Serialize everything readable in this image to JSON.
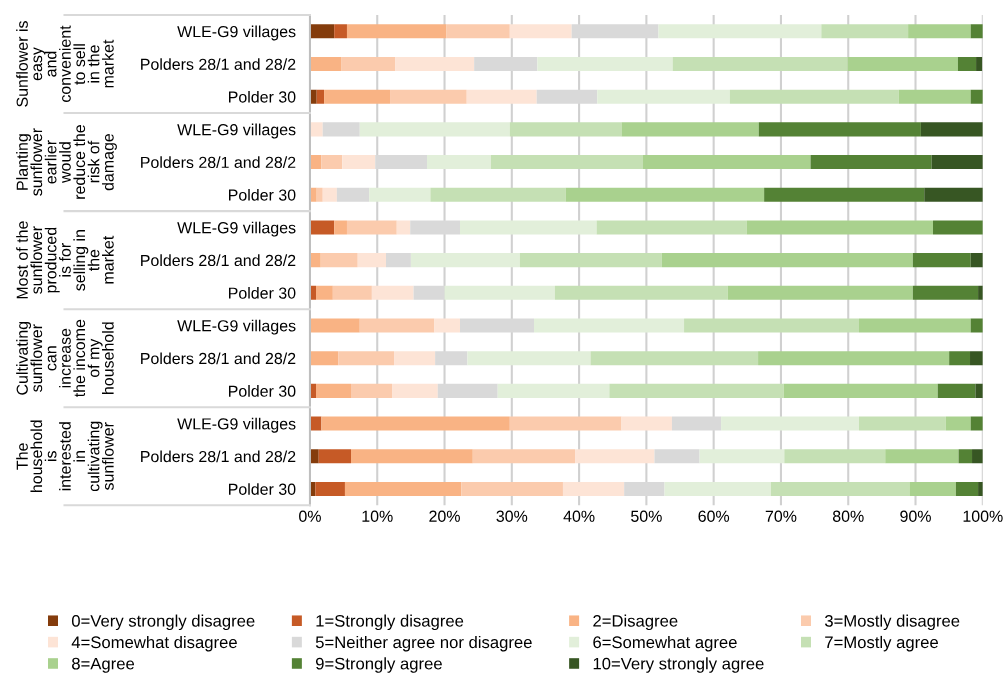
{
  "chart_data": {
    "type": "bar",
    "orientation": "horizontal",
    "stacked": true,
    "categories": [
      "WLE-G9 villages",
      "Polders 28/1 and 28/2",
      "Polder 30",
      "WLE-G9 villages",
      "Polders 28/1 and 28/2",
      "Polder 30",
      "WLE-G9 villages",
      "Polders 28/1 and 28/2",
      "Polder 30",
      "WLE-G9 villages",
      "Polders 28/1 and 28/2",
      "Polder 30",
      "WLE-G9 villages",
      "Polders 28/1 and 28/2",
      "Polder 30"
    ],
    "series": [
      {
        "name": "0=Very strongly disagree",
        "color": "#843c0c",
        "values": [
          3.6,
          0,
          1.0,
          0,
          0,
          0,
          0,
          0,
          0,
          0,
          0,
          0,
          0,
          1.3,
          0.8
        ]
      },
      {
        "name": "1=Strongly disagree",
        "color": "#c65a26",
        "values": [
          1.9,
          0,
          1.1,
          0,
          0,
          0,
          3.6,
          0,
          0.9,
          0,
          0,
          0.9,
          1.7,
          4.8,
          4.4
        ]
      },
      {
        "name": "2=Disagree",
        "color": "#f9b384",
        "values": [
          14.8,
          4.7,
          9.8,
          0,
          1.7,
          1.0,
          1.9,
          1.6,
          2.5,
          7.4,
          4.2,
          5.2,
          28.0,
          18.1,
          17.3
        ]
      },
      {
        "name": "3=Mostly disagree",
        "color": "#fbcbad",
        "values": [
          9.4,
          8.0,
          11.4,
          0,
          3.1,
          0.9,
          7.4,
          5.5,
          5.8,
          11.1,
          8.3,
          6.1,
          16.6,
          15.2,
          15.1
        ]
      },
      {
        "name": "4=Somewhat disagree",
        "color": "#fde4d6",
        "values": [
          9.2,
          11.7,
          10.4,
          1.9,
          4.9,
          2.1,
          2.0,
          4.2,
          6.2,
          3.8,
          6.1,
          6.8,
          7.5,
          11.8,
          9.1
        ]
      },
      {
        "name": "5=Neither agree nor disagree",
        "color": "#d9d9d9",
        "values": [
          12.9,
          9.4,
          9.0,
          5.5,
          7.7,
          4.8,
          7.4,
          3.7,
          4.6,
          11.0,
          4.8,
          8.9,
          7.3,
          6.7,
          6.0
        ]
      },
      {
        "name": "6=Somewhat agree",
        "color": "#e2efda",
        "values": [
          24.2,
          20.1,
          19.7,
          22.3,
          9.5,
          9.1,
          20.3,
          16.2,
          16.4,
          22.3,
          18.3,
          16.6,
          20.5,
          12.6,
          15.8
        ]
      },
      {
        "name": "7=Mostly agree",
        "color": "#c5e0b4",
        "values": [
          12.9,
          26.0,
          25.1,
          16.6,
          22.6,
          20.1,
          22.3,
          21.1,
          25.7,
          26.0,
          24.9,
          25.9,
          12.9,
          15.0,
          20.6
        ]
      },
      {
        "name": "8=Agree",
        "color": "#a9d18e",
        "values": [
          9.3,
          16.4,
          10.7,
          20.4,
          24.9,
          29.5,
          27.7,
          37.3,
          27.5,
          16.6,
          28.4,
          22.9,
          3.7,
          10.9,
          6.9
        ]
      },
      {
        "name": "9=Strongly agree",
        "color": "#548235",
        "values": [
          1.8,
          2.7,
          1.8,
          24.1,
          18.0,
          23.8,
          7.4,
          8.6,
          9.7,
          1.8,
          3.1,
          5.6,
          1.8,
          2.0,
          3.3
        ]
      },
      {
        "name": "10=Very strongly agree",
        "color": "#375623",
        "values": [
          0,
          0.9,
          0,
          9.2,
          7.6,
          8.7,
          0,
          1.8,
          0.7,
          0,
          1.9,
          1.1,
          0,
          1.6,
          0.7
        ]
      }
    ],
    "xlim": [
      0,
      100
    ],
    "xticks": [
      {
        "value": 0,
        "label": "0%"
      },
      {
        "value": 10,
        "label": "10%"
      },
      {
        "value": 20,
        "label": "20%"
      },
      {
        "value": 30,
        "label": "30%"
      },
      {
        "value": 40,
        "label": "40%"
      },
      {
        "value": 50,
        "label": "50%"
      },
      {
        "value": 60,
        "label": "60%"
      },
      {
        "value": 70,
        "label": "70%"
      },
      {
        "value": 80,
        "label": "80%"
      },
      {
        "value": 90,
        "label": "90%"
      },
      {
        "value": 100,
        "label": "100%"
      }
    ],
    "annotations": [
      "Sunflower is\neasy\nand\nconvenient\nto sell\nin the\nmarket",
      "Planting\nsunflower\nearlier\nwould\nreduce the\nrisk of\ndamage",
      "Most of the\nsunflower\nproduced\nis for\nselling in\nthe\nmarket",
      "Cultivating\nsunflower\ncan\nincrease\nthe income\nof my\nhousehold",
      "The\nhousehold\nis\ninterested\nin\ncultivating\nsunflower"
    ],
    "grid": "x",
    "legend": "bottom"
  }
}
